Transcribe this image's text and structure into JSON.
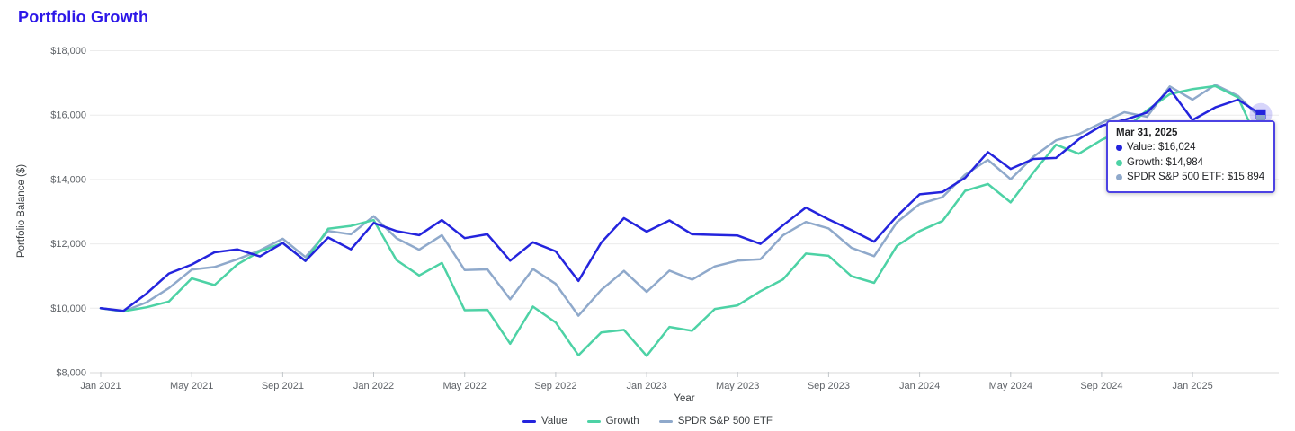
{
  "title": "Portfolio Growth",
  "colors": {
    "title": "#2d18e8",
    "value_line": "#2424dd",
    "growth_line": "#4dd2a5",
    "spdr_line": "#8fa9cb",
    "grid": "#ececec",
    "baseline": "#d8d8d8",
    "tick_mark": "#c2c6ca",
    "axis_text": "#5f6368",
    "tooltip_border": "#4c42e3",
    "halo_blue": "rgba(99,91,235,0.26)",
    "halo_teal": "rgba(77,210,165,0.28)"
  },
  "tooltip": {
    "date": "Mar 31, 2025",
    "rows": [
      {
        "text": "Value: $16,024",
        "color": "#2424dd"
      },
      {
        "text": "Growth: $14,984",
        "color": "#4dd2a5"
      },
      {
        "text": "SPDR S&P 500 ETF: $15,894",
        "color": "#8fa9cb"
      }
    ]
  },
  "chart_data": {
    "type": "line",
    "title": "Portfolio Growth",
    "xlabel": "Year",
    "ylabel": "Portfolio Balance ($)",
    "ylim": [
      8000,
      18000
    ],
    "grid": true,
    "legend_position": "bottom",
    "highlight_index": 51,
    "highlight_date": "Mar 31, 2025",
    "x": [
      "Dec 2020",
      "Jan 2021",
      "Feb 2021",
      "Mar 2021",
      "Apr 2021",
      "May 2021",
      "Jun 2021",
      "Jul 2021",
      "Aug 2021",
      "Sep 2021",
      "Oct 2021",
      "Nov 2021",
      "Dec 2021",
      "Jan 2022",
      "Feb 2022",
      "Mar 2022",
      "Apr 2022",
      "May 2022",
      "Jun 2022",
      "Jul 2022",
      "Aug 2022",
      "Sep 2022",
      "Oct 2022",
      "Nov 2022",
      "Dec 2022",
      "Jan 2023",
      "Feb 2023",
      "Mar 2023",
      "Apr 2023",
      "May 2023",
      "Jun 2023",
      "Jul 2023",
      "Aug 2023",
      "Sep 2023",
      "Oct 2023",
      "Nov 2023",
      "Dec 2023",
      "Jan 2024",
      "Feb 2024",
      "Mar 2024",
      "Apr 2024",
      "May 2024",
      "Jun 2024",
      "Jul 2024",
      "Aug 2024",
      "Sep 2024",
      "Oct 2024",
      "Nov 2024",
      "Dec 2024",
      "Jan 2025",
      "Feb 2025",
      "Mar 2025"
    ],
    "y_ticks": [
      {
        "value": 8000,
        "label": "$8,000"
      },
      {
        "value": 10000,
        "label": "$10,000"
      },
      {
        "value": 12000,
        "label": "$12,000"
      },
      {
        "value": 14000,
        "label": "$14,000"
      },
      {
        "value": 16000,
        "label": "$16,000"
      },
      {
        "value": 18000,
        "label": "$18,000"
      }
    ],
    "x_ticks": [
      {
        "index": 0,
        "label": "Jan 2021"
      },
      {
        "index": 4,
        "label": "May 2021"
      },
      {
        "index": 8,
        "label": "Sep 2021"
      },
      {
        "index": 12,
        "label": "Jan 2022"
      },
      {
        "index": 16,
        "label": "May 2022"
      },
      {
        "index": 20,
        "label": "Sep 2022"
      },
      {
        "index": 24,
        "label": "Jan 2023"
      },
      {
        "index": 28,
        "label": "May 2023"
      },
      {
        "index": 32,
        "label": "Sep 2023"
      },
      {
        "index": 36,
        "label": "Jan 2024"
      },
      {
        "index": 40,
        "label": "May 2024"
      },
      {
        "index": 44,
        "label": "Sep 2024"
      },
      {
        "index": 48,
        "label": "Jan 2025"
      }
    ],
    "series": [
      {
        "name": "Value",
        "color": "#2424dd",
        "marker": "square",
        "values": [
          10000,
          9920,
          10450,
          11080,
          11360,
          11740,
          11830,
          11610,
          12030,
          11470,
          12200,
          11830,
          12650,
          12400,
          12270,
          12740,
          12180,
          12300,
          11480,
          12050,
          11770,
          10850,
          12040,
          12800,
          12380,
          12730,
          12300,
          12280,
          12260,
          12000,
          12580,
          13130,
          12760,
          12430,
          12070,
          12860,
          13540,
          13610,
          14050,
          14850,
          14330,
          14640,
          14670,
          15250,
          15670,
          15850,
          16080,
          16810,
          15850,
          16240,
          16480,
          16024
        ]
      },
      {
        "name": "Growth",
        "color": "#4dd2a5",
        "marker": "diamond",
        "values": [
          10000,
          9910,
          10030,
          10210,
          10930,
          10720,
          11360,
          11770,
          12030,
          11470,
          12470,
          12560,
          12740,
          11500,
          11020,
          11410,
          9940,
          9950,
          8900,
          10050,
          9560,
          8540,
          9250,
          9330,
          8520,
          9420,
          9300,
          9980,
          10090,
          10530,
          10900,
          11700,
          11630,
          11000,
          10790,
          11940,
          12400,
          12710,
          13650,
          13860,
          13290,
          14220,
          15080,
          14800,
          15230,
          15550,
          16150,
          16650,
          16810,
          16900,
          16550,
          14984
        ]
      },
      {
        "name": "SPDR S&P 500 ETF",
        "color": "#8fa9cb",
        "marker": "square",
        "values": [
          10000,
          9900,
          10180,
          10630,
          11200,
          11280,
          11520,
          11800,
          12160,
          11590,
          12400,
          12300,
          12860,
          12180,
          11820,
          12270,
          11190,
          11210,
          10280,
          11220,
          10760,
          9770,
          10570,
          11160,
          10510,
          11170,
          10890,
          11300,
          11480,
          11520,
          12270,
          12680,
          12480,
          11880,
          11620,
          12670,
          13240,
          13450,
          14150,
          14610,
          14010,
          14710,
          15220,
          15410,
          15760,
          16090,
          15950,
          16890,
          16480,
          16940,
          16600,
          15894
        ]
      }
    ]
  }
}
